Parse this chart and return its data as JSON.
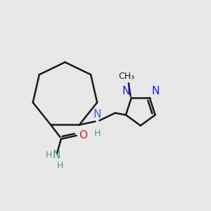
{
  "background_color": "#e8e8e8",
  "bond_color": "#1a1a1a",
  "bond_width": 1.8,
  "figsize": [
    3.0,
    3.0
  ],
  "dpi": 100,
  "xlim": [
    -0.05,
    1.05
  ],
  "ylim": [
    -0.05,
    1.05
  ],
  "nh_color": "#3366cc",
  "h_color": "#4a9a8c",
  "o_color": "#cc2222",
  "n_pyrazole_color": "#1a1aff",
  "nh2_color": "#4a9a8c"
}
